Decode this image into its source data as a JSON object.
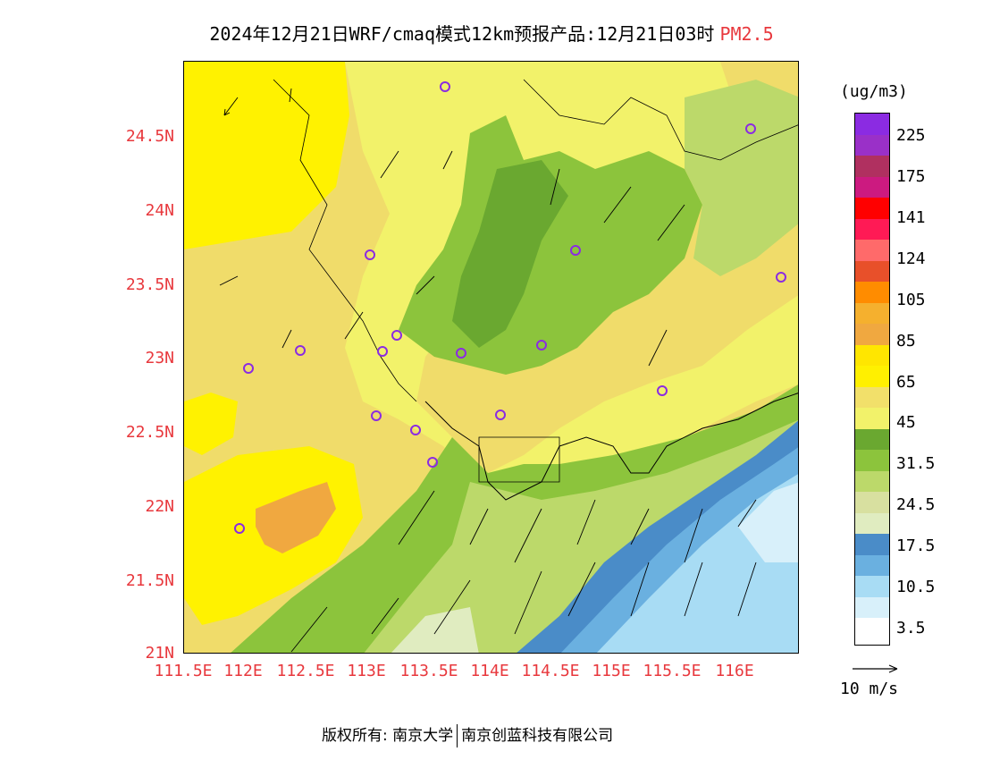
{
  "header": {
    "title": "2024年12月21日WRF/cmaq模式12km预报产品:12月21日03时",
    "pollutant": "PM2.5"
  },
  "axes": {
    "lat_labels": [
      "24.5N",
      "24N",
      "23.5N",
      "23N",
      "22.5N",
      "22N",
      "21.5N",
      "21N"
    ],
    "lon_labels": [
      "111.5E",
      "112E",
      "112.5E",
      "113E",
      "113.5E",
      "114E",
      "114.5E",
      "115E",
      "115.5E",
      "116E"
    ]
  },
  "legend": {
    "units": "(ug/m3)",
    "levels": [
      "225",
      "175",
      "141",
      "124",
      "105",
      "85",
      "65",
      "45",
      "31.5",
      "24.5",
      "17.5",
      "10.5",
      "3.5"
    ],
    "colors_top_to_bottom": [
      "#8b2be2",
      "#9a30c8",
      "#b03060",
      "#cc1a80",
      "#ff0000",
      "#ff1a55",
      "#ff6a6a",
      "#e8502a",
      "#ff8c00",
      "#f5b02e",
      "#f0a840",
      "#ffe600",
      "#fff000",
      "#f2e06a",
      "#f2f26a",
      "#6aa830",
      "#8cc43c",
      "#bcd96a",
      "#d8e0a0",
      "#e0ecc0",
      "#4a8cc8",
      "#6ab0e0",
      "#a8dcf4",
      "#d8f0fa",
      "#ffffff"
    ]
  },
  "wind_reference": {
    "label": "10 m/s"
  },
  "footer": {
    "left": "版权所有: 南京大学",
    "right": "南京创蓝科技有限公司"
  },
  "map_colors": {
    "yellow": "#fff200",
    "light_yellow": "#f2f26a",
    "tan": "#f0dc6a",
    "orange": "#f0a840",
    "green_dark": "#6aa830",
    "green_mid": "#8cc43c",
    "green_light": "#bcd96a",
    "pale_green": "#e0ecc0",
    "sea_dark": "#4a8cc8",
    "sea_mid": "#6ab0e0",
    "sea_light": "#a8dcf4",
    "sea_pale": "#d8f0fa"
  }
}
